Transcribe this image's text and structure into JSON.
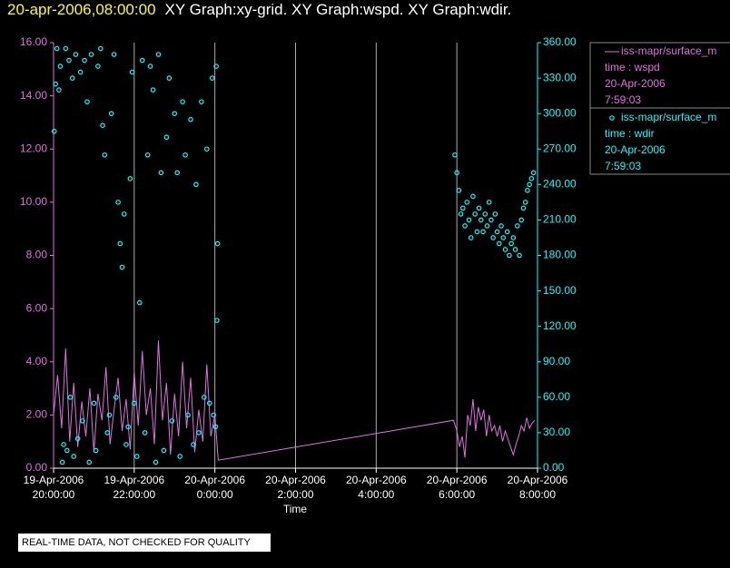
{
  "chart_data": {
    "type": "line+scatter",
    "title_time": "20-apr-2006,08:00:00",
    "title": "XY Graph:xy-grid.  XY Graph:wspd.  XY Graph:wdir.",
    "xlabel": "Time",
    "footer": "REAL-TIME DATA, NOT CHECKED FOR QUALITY",
    "xlim": [
      "2006-04-19T20:00:00",
      "2006-04-20T08:00:00"
    ],
    "xticks": [
      {
        "value": "2006-04-19T20:00:00",
        "label": [
          "19-Apr-2006",
          "20:00:00"
        ]
      },
      {
        "value": "2006-04-19T22:00:00",
        "label": [
          "19-Apr-2006",
          "22:00:00"
        ]
      },
      {
        "value": "2006-04-20T00:00:00",
        "label": [
          "20-Apr-2006",
          "0:00:00"
        ]
      },
      {
        "value": "2006-04-20T02:00:00",
        "label": [
          "20-Apr-2006",
          "2:00:00"
        ]
      },
      {
        "value": "2006-04-20T04:00:00",
        "label": [
          "20-Apr-2006",
          "4:00:00"
        ]
      },
      {
        "value": "2006-04-20T06:00:00",
        "label": [
          "20-Apr-2006",
          "6:00:00"
        ]
      },
      {
        "value": "2006-04-20T08:00:00",
        "label": [
          "20-Apr-2006",
          "8:00:00"
        ]
      }
    ],
    "grid": true,
    "ylim": [
      0,
      16
    ],
    "yticks": [
      {
        "value": 0,
        "label": "0.00"
      },
      {
        "value": 2,
        "label": "2.00"
      },
      {
        "value": 4,
        "label": "4.00"
      },
      {
        "value": 6,
        "label": "6.00"
      },
      {
        "value": 8,
        "label": "8.00"
      },
      {
        "value": 10,
        "label": "10.00"
      },
      {
        "value": 12,
        "label": "12.00"
      },
      {
        "value": 14,
        "label": "14.00"
      },
      {
        "value": 16,
        "label": "16.00"
      }
    ],
    "y2lim": [
      0,
      360
    ],
    "y2ticks": [
      {
        "value": 0,
        "label": "0.00"
      },
      {
        "value": 30,
        "label": "30.00"
      },
      {
        "value": 60,
        "label": "60.00"
      },
      {
        "value": 90,
        "label": "90.00"
      },
      {
        "value": 120,
        "label": "120.00"
      },
      {
        "value": 150,
        "label": "150.00"
      },
      {
        "value": 180,
        "label": "180.00"
      },
      {
        "value": 210,
        "label": "210.00"
      },
      {
        "value": 240,
        "label": "240.00"
      },
      {
        "value": 270,
        "label": "270.00"
      },
      {
        "value": 300,
        "label": "300.00"
      },
      {
        "value": 330,
        "label": "330.00"
      },
      {
        "value": 360,
        "label": "360.00"
      }
    ],
    "series": [
      {
        "name": "iss-mapr/surface_m",
        "legend_lines": [
          "time : wspd",
          "20-Apr-2006",
          "7:59:03"
        ],
        "color": "#e070e0",
        "kind": "line",
        "axis": "y",
        "x": [
          "2006-04-19T20:00:00",
          "2006-04-19T20:06:00",
          "2006-04-19T20:12:00",
          "2006-04-19T20:18:00",
          "2006-04-19T20:24:00",
          "2006-04-19T20:30:00",
          "2006-04-19T20:36:00",
          "2006-04-19T20:42:00",
          "2006-04-19T20:48:00",
          "2006-04-19T20:54:00",
          "2006-04-19T21:00:00",
          "2006-04-19T21:06:00",
          "2006-04-19T21:12:00",
          "2006-04-19T21:18:00",
          "2006-04-19T21:24:00",
          "2006-04-19T21:30:00",
          "2006-04-19T21:36:00",
          "2006-04-19T21:42:00",
          "2006-04-19T21:48:00",
          "2006-04-19T21:54:00",
          "2006-04-19T22:00:00",
          "2006-04-19T22:06:00",
          "2006-04-19T22:12:00",
          "2006-04-19T22:18:00",
          "2006-04-19T22:24:00",
          "2006-04-19T22:30:00",
          "2006-04-19T22:36:00",
          "2006-04-19T22:42:00",
          "2006-04-19T22:48:00",
          "2006-04-19T22:54:00",
          "2006-04-19T23:00:00",
          "2006-04-19T23:06:00",
          "2006-04-19T23:12:00",
          "2006-04-19T23:18:00",
          "2006-04-19T23:24:00",
          "2006-04-19T23:30:00",
          "2006-04-19T23:36:00",
          "2006-04-19T23:42:00",
          "2006-04-19T23:48:00",
          "2006-04-19T23:54:00",
          "2006-04-20T00:00:00",
          "2006-04-20T00:05:00",
          "2006-04-20T05:55:00",
          "2006-04-20T06:00:00",
          "2006-04-20T06:04:00",
          "2006-04-20T06:08:00",
          "2006-04-20T06:12:00",
          "2006-04-20T06:16:00",
          "2006-04-20T06:20:00",
          "2006-04-20T06:24:00",
          "2006-04-20T06:28:00",
          "2006-04-20T06:32:00",
          "2006-04-20T06:36:00",
          "2006-04-20T06:40:00",
          "2006-04-20T06:44:00",
          "2006-04-20T06:48:00",
          "2006-04-20T06:52:00",
          "2006-04-20T06:56:00",
          "2006-04-20T07:00:00",
          "2006-04-20T07:04:00",
          "2006-04-20T07:08:00",
          "2006-04-20T07:12:00",
          "2006-04-20T07:16:00",
          "2006-04-20T07:20:00",
          "2006-04-20T07:24:00",
          "2006-04-20T07:28:00",
          "2006-04-20T07:32:00",
          "2006-04-20T07:36:00",
          "2006-04-20T07:40:00",
          "2006-04-20T07:44:00",
          "2006-04-20T07:48:00",
          "2006-04-20T07:52:00",
          "2006-04-20T07:56:00"
        ],
        "values": [
          2.0,
          3.5,
          1.5,
          4.5,
          1.0,
          3.2,
          0.8,
          2.5,
          1.2,
          3.0,
          0.6,
          2.8,
          1.8,
          3.8,
          0.9,
          2.2,
          3.4,
          1.4,
          2.6,
          0.7,
          3.6,
          1.6,
          4.4,
          2.0,
          3.0,
          0.9,
          4.8,
          1.8,
          3.2,
          0.5,
          2.8,
          1.2,
          4.0,
          1.5,
          3.4,
          0.6,
          2.2,
          1.0,
          3.9,
          1.2,
          2.0,
          0.3,
          1.8,
          1.4,
          0.8,
          1.2,
          0.4,
          2.0,
          1.6,
          2.6,
          1.4,
          2.3,
          1.8,
          2.2,
          1.2,
          2.0,
          1.4,
          1.6,
          1.2,
          1.6,
          1.0,
          1.4,
          1.1,
          0.8,
          0.5,
          0.9,
          1.2,
          1.6,
          1.4,
          1.9,
          1.5,
          1.7,
          1.8
        ]
      },
      {
        "name": "iss-mapr/surface_m",
        "legend_lines": [
          "time : wdir",
          "20-Apr-2006",
          "7:59:03"
        ],
        "color": "#00ffff",
        "kind": "scatter",
        "axis": "y2",
        "x": [
          "2006-04-19T20:01:00",
          "2006-04-19T20:03:00",
          "2006-04-19T20:05:00",
          "2006-04-19T20:08:00",
          "2006-04-19T20:10:00",
          "2006-04-19T20:13:00",
          "2006-04-19T20:15:00",
          "2006-04-19T20:18:00",
          "2006-04-19T20:20:00",
          "2006-04-19T20:23:00",
          "2006-04-19T20:25:00",
          "2006-04-19T20:28:00",
          "2006-04-19T20:30:00",
          "2006-04-19T20:33:00",
          "2006-04-19T20:36:00",
          "2006-04-19T20:40:00",
          "2006-04-19T20:43:00",
          "2006-04-19T20:46:00",
          "2006-04-19T20:50:00",
          "2006-04-19T20:53:00",
          "2006-04-19T20:56:00",
          "2006-04-19T21:00:00",
          "2006-04-19T21:03:00",
          "2006-04-19T21:06:00",
          "2006-04-19T21:10:00",
          "2006-04-19T21:13:00",
          "2006-04-19T21:16:00",
          "2006-04-19T21:20:00",
          "2006-04-19T21:23:00",
          "2006-04-19T21:26:00",
          "2006-04-19T21:30:00",
          "2006-04-19T21:33:00",
          "2006-04-19T21:36:00",
          "2006-04-19T21:39:00",
          "2006-04-19T21:42:00",
          "2006-04-19T21:45:00",
          "2006-04-19T21:48:00",
          "2006-04-19T21:51:00",
          "2006-04-19T21:54:00",
          "2006-04-19T21:57:00",
          "2006-04-19T22:00:00",
          "2006-04-19T22:04:00",
          "2006-04-19T22:08:00",
          "2006-04-19T22:12:00",
          "2006-04-19T22:16:00",
          "2006-04-19T22:20:00",
          "2006-04-19T22:24:00",
          "2006-04-19T22:28:00",
          "2006-04-19T22:32:00",
          "2006-04-19T22:36:00",
          "2006-04-19T22:40:00",
          "2006-04-19T22:44:00",
          "2006-04-19T22:48:00",
          "2006-04-19T22:52:00",
          "2006-04-19T22:56:00",
          "2006-04-19T23:00:00",
          "2006-04-19T23:04:00",
          "2006-04-19T23:08:00",
          "2006-04-19T23:12:00",
          "2006-04-19T23:16:00",
          "2006-04-19T23:20:00",
          "2006-04-19T23:24:00",
          "2006-04-19T23:28:00",
          "2006-04-19T23:32:00",
          "2006-04-19T23:36:00",
          "2006-04-19T23:40:00",
          "2006-04-19T23:44:00",
          "2006-04-19T23:48:00",
          "2006-04-19T23:52:00",
          "2006-04-19T23:56:00",
          "2006-04-19T23:58:00",
          "2006-04-20T00:01:00",
          "2006-04-20T00:02:00",
          "2006-04-20T00:03:00",
          "2006-04-20T00:04:00",
          "2006-04-20T05:57:00",
          "2006-04-20T06:00:00",
          "2006-04-20T06:03:00",
          "2006-04-20T06:06:00",
          "2006-04-20T06:09:00",
          "2006-04-20T06:12:00",
          "2006-04-20T06:15:00",
          "2006-04-20T06:18:00",
          "2006-04-20T06:21:00",
          "2006-04-20T06:24:00",
          "2006-04-20T06:27:00",
          "2006-04-20T06:30:00",
          "2006-04-20T06:33:00",
          "2006-04-20T06:36:00",
          "2006-04-20T06:39:00",
          "2006-04-20T06:42:00",
          "2006-04-20T06:45:00",
          "2006-04-20T06:48:00",
          "2006-04-20T06:51:00",
          "2006-04-20T06:54:00",
          "2006-04-20T06:57:00",
          "2006-04-20T07:00:00",
          "2006-04-20T07:03:00",
          "2006-04-20T07:06:00",
          "2006-04-20T07:09:00",
          "2006-04-20T07:12:00",
          "2006-04-20T07:15:00",
          "2006-04-20T07:18:00",
          "2006-04-20T07:21:00",
          "2006-04-20T07:24:00",
          "2006-04-20T07:27:00",
          "2006-04-20T07:30:00",
          "2006-04-20T07:33:00",
          "2006-04-20T07:36:00",
          "2006-04-20T07:39:00",
          "2006-04-20T07:42:00",
          "2006-04-20T07:45:00",
          "2006-04-20T07:48:00",
          "2006-04-20T07:51:00",
          "2006-04-20T07:54:00"
        ],
        "values": [
          285,
          325,
          355,
          320,
          340,
          5,
          20,
          355,
          15,
          345,
          60,
          330,
          10,
          350,
          25,
          335,
          40,
          345,
          310,
          5,
          350,
          55,
          15,
          340,
          355,
          290,
          265,
          30,
          45,
          300,
          350,
          60,
          225,
          190,
          170,
          215,
          20,
          35,
          245,
          335,
          55,
          10,
          140,
          345,
          30,
          265,
          340,
          320,
          5,
          350,
          250,
          15,
          280,
          330,
          40,
          300,
          250,
          10,
          310,
          265,
          45,
          295,
          20,
          240,
          30,
          310,
          60,
          270,
          55,
          330,
          45,
          35,
          340,
          125,
          190,
          265,
          250,
          235,
          215,
          220,
          205,
          225,
          210,
          195,
          230,
          215,
          200,
          220,
          210,
          200,
          215,
          205,
          225,
          210,
          195,
          215,
          200,
          190,
          205,
          195,
          185,
          200,
          180,
          190,
          195,
          185,
          205,
          180,
          210,
          220,
          225,
          235,
          240,
          245,
          250
        ]
      }
    ]
  }
}
